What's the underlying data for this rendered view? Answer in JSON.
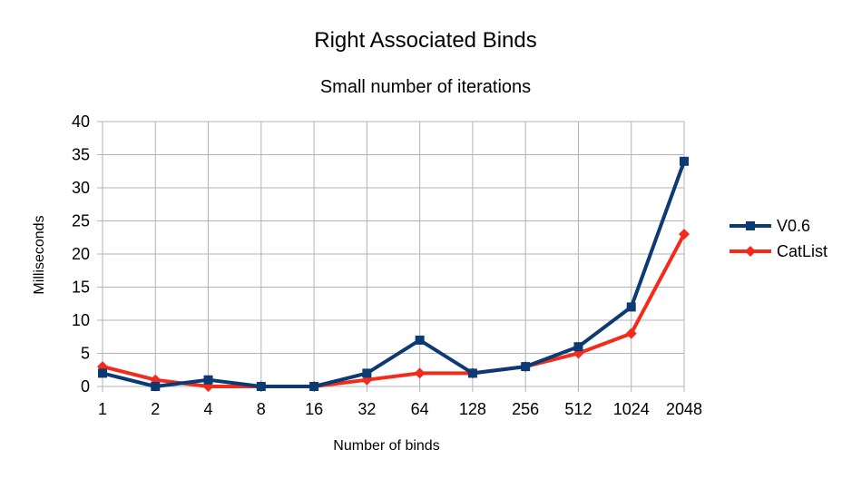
{
  "chart_data": {
    "type": "line",
    "title": "Right Associated Binds",
    "subtitle": "Small number of iterations",
    "xlabel": "Number of binds",
    "ylabel": "Milliseconds",
    "categories": [
      "1",
      "2",
      "4",
      "8",
      "16",
      "32",
      "64",
      "128",
      "256",
      "512",
      "1024",
      "2048"
    ],
    "yticks": [
      "0",
      "5",
      "10",
      "15",
      "20",
      "25",
      "30",
      "35",
      "40"
    ],
    "ylim": [
      0,
      40
    ],
    "grid": true,
    "legend_position": "right",
    "series": [
      {
        "name": "V0.6",
        "color": "#0b3a75",
        "marker": "square",
        "values": [
          2,
          0,
          1,
          0,
          0,
          2,
          7,
          2,
          3,
          6,
          12,
          34
        ]
      },
      {
        "name": "CatList",
        "color": "#f42a1a",
        "marker": "diamond",
        "values": [
          3,
          1,
          0,
          0,
          0,
          1,
          2,
          2,
          3,
          5,
          8,
          23
        ]
      }
    ]
  }
}
